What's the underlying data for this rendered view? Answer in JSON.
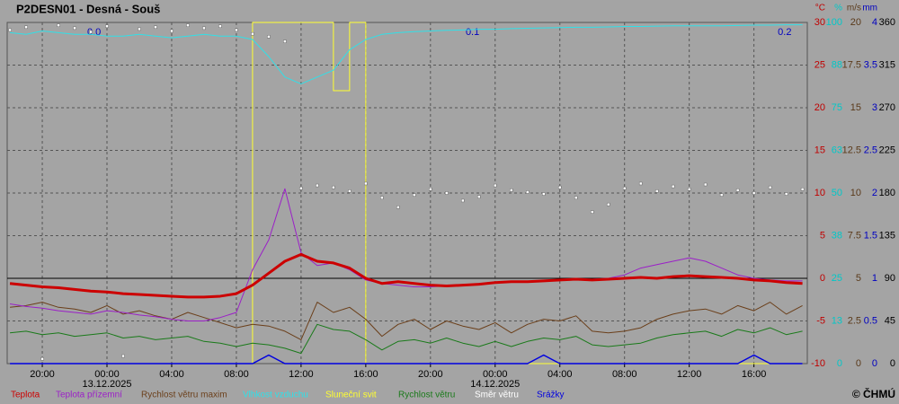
{
  "chart_data": {
    "type": "line",
    "title": "P2DESN01 - Desná - Souš",
    "copyright": "© ČHMÚ",
    "xlim": [
      -0.17,
      49.3
    ],
    "xticks": [
      {
        "value": 2,
        "label": "20:00"
      },
      {
        "value": 6,
        "label": "00:00"
      },
      {
        "value": 10,
        "label": "04:00"
      },
      {
        "value": 14,
        "label": "08:00"
      },
      {
        "value": 18,
        "label": "12:00"
      },
      {
        "value": 22,
        "label": "16:00"
      },
      {
        "value": 26,
        "label": "20:00"
      },
      {
        "value": 30,
        "label": "00:00"
      },
      {
        "value": 34,
        "label": "04:00"
      },
      {
        "value": 38,
        "label": "08:00"
      },
      {
        "value": 42,
        "label": "12:00"
      },
      {
        "value": 46,
        "label": "16:00"
      }
    ],
    "xdates": [
      {
        "value": 6,
        "label": "13.12.2025"
      },
      {
        "value": 30,
        "label": "14.12.2025"
      }
    ],
    "grid": true,
    "axes": [
      {
        "unit": "°C",
        "color": "#c00000",
        "lim": [
          -10,
          30
        ],
        "ticks": [
          -10,
          -5,
          0,
          5,
          10,
          15,
          20,
          25,
          30
        ]
      },
      {
        "unit": "%",
        "color": "#00c8c8",
        "lim": [
          0,
          100
        ],
        "ticks": [
          0,
          {
            "value": 12.5,
            "label": "13"
          },
          25,
          {
            "value": 37.5,
            "label": "38"
          },
          50,
          {
            "value": 62.5,
            "label": "63"
          },
          75,
          {
            "value": 87.5,
            "label": "88"
          },
          100
        ]
      },
      {
        "unit": "m/s",
        "color": "#5a3a1a",
        "lim": [
          0,
          20
        ],
        "ticks": [
          0,
          2.5,
          5,
          7.5,
          10,
          12.5,
          15,
          17.5,
          20
        ]
      },
      {
        "unit": "mm",
        "color": "#0000c0",
        "lim": [
          0,
          4
        ],
        "ticks": [
          0,
          0.5,
          1,
          1.5,
          2,
          2.5,
          3,
          3.5,
          4
        ]
      },
      {
        "color": "#ffffff",
        "lim": [
          0,
          360
        ],
        "ticks": [
          0,
          45,
          90,
          135,
          180,
          225,
          270,
          315,
          360
        ]
      }
    ],
    "zero_line": 0,
    "annotations": [
      {
        "x": 5.2,
        "text": "0.0"
      },
      {
        "x": 28.6,
        "text": "0.1"
      },
      {
        "x": 47.9,
        "text": "0.2"
      }
    ],
    "series": [
      {
        "name": "Teplota",
        "color": "#cc0000",
        "axis": 0,
        "style": "line",
        "width": 3,
        "values": [
          -0.6,
          -0.8,
          -1.0,
          -1.1,
          -1.3,
          -1.5,
          -1.6,
          -1.8,
          -1.9,
          -2.0,
          -2.1,
          -2.2,
          -2.2,
          -2.1,
          -1.8,
          -0.8,
          0.6,
          2.0,
          2.8,
          2.0,
          1.8,
          1.2,
          0.0,
          -0.6,
          -0.4,
          -0.6,
          -0.8,
          -0.9,
          -0.8,
          -0.7,
          -0.5,
          -0.4,
          -0.4,
          -0.3,
          -0.2,
          -0.1,
          -0.2,
          -0.1,
          0.0,
          0.1,
          0.0,
          0.2,
          0.3,
          0.2,
          0.1,
          0.0,
          -0.2,
          -0.3,
          -0.5,
          -0.6
        ]
      },
      {
        "name": "Teplota přízemní",
        "color": "#9b1fc8",
        "axis": 0,
        "style": "line",
        "width": 1,
        "values": [
          -3.0,
          -3.3,
          -3.5,
          -3.8,
          -4.0,
          -4.2,
          -3.8,
          -4.0,
          -4.3,
          -4.5,
          -4.8,
          -5.0,
          -5.0,
          -4.6,
          -4.0,
          1.0,
          4.5,
          10.5,
          3.0,
          1.5,
          1.8,
          1.0,
          -0.2,
          -0.6,
          -0.8,
          -1.0,
          -1.0,
          -0.9,
          -0.8,
          -0.6,
          -0.5,
          -0.4,
          -0.4,
          -0.3,
          -0.2,
          -0.2,
          -0.1,
          0.0,
          0.4,
          1.2,
          1.6,
          2.0,
          2.4,
          2.0,
          1.2,
          0.4,
          0.0,
          -0.2,
          -0.3,
          -0.3
        ]
      },
      {
        "name": "Rychlost větru maxim",
        "color": "#6b3f1a",
        "axis": 2,
        "style": "line",
        "width": 1,
        "values": [
          3.3,
          3.4,
          3.6,
          3.3,
          3.2,
          3.0,
          3.4,
          2.9,
          3.1,
          2.8,
          2.6,
          3.0,
          2.7,
          2.4,
          2.1,
          2.3,
          2.2,
          1.9,
          1.4,
          3.6,
          3.0,
          3.3,
          2.6,
          1.6,
          2.3,
          2.6,
          2.0,
          2.5,
          2.2,
          2.0,
          2.4,
          1.8,
          2.3,
          2.6,
          2.5,
          2.8,
          1.9,
          1.8,
          1.9,
          2.1,
          2.6,
          2.9,
          3.1,
          3.2,
          2.9,
          3.4,
          3.1,
          3.6,
          2.9,
          3.4
        ]
      },
      {
        "name": "Vlhkost vzduchu",
        "color": "#30e0e8",
        "axis": 1,
        "style": "line",
        "width": 1,
        "values": [
          97,
          96.5,
          97.5,
          97,
          96.5,
          96.5,
          96,
          96,
          96.5,
          96,
          95.5,
          96,
          96.5,
          96,
          96,
          95,
          90,
          84,
          82,
          84,
          86,
          92,
          95,
          96.5,
          97,
          97.3,
          97.5,
          97.7,
          97.8,
          98,
          98,
          98.2,
          98.3,
          98.4,
          98.5,
          98.6,
          98.6,
          98.7,
          98.8,
          98.8,
          98.9,
          99,
          99,
          99,
          99,
          99.1,
          99.2,
          99.2,
          99.3,
          99.3
        ]
      },
      {
        "name": "Sluneční svit",
        "color": "#ffff30",
        "axis": 1,
        "style": "step",
        "width": 1,
        "values": [
          0,
          0,
          0,
          0,
          0,
          0,
          0,
          0,
          0,
          0,
          0,
          0,
          0,
          0,
          0,
          100,
          100,
          100,
          100,
          100,
          80,
          100,
          0,
          0,
          0,
          0,
          0,
          0,
          0,
          0,
          0,
          0,
          0,
          0,
          0,
          0,
          0,
          0,
          0,
          0,
          0,
          0,
          0,
          0,
          0,
          0,
          0,
          0,
          0,
          0
        ]
      },
      {
        "name": "Rychlost větru",
        "color": "#1a7a1a",
        "axis": 2,
        "style": "line",
        "width": 1,
        "values": [
          1.8,
          1.9,
          1.7,
          1.8,
          1.6,
          1.7,
          1.8,
          1.5,
          1.6,
          1.4,
          1.5,
          1.6,
          1.3,
          1.2,
          1.0,
          1.2,
          1.1,
          0.9,
          0.6,
          2.3,
          2.0,
          1.9,
          1.4,
          0.8,
          1.3,
          1.4,
          1.2,
          1.5,
          1.2,
          1.0,
          1.3,
          1.0,
          1.3,
          1.5,
          1.4,
          1.6,
          1.1,
          1.0,
          1.1,
          1.2,
          1.5,
          1.7,
          1.8,
          1.9,
          1.6,
          2.0,
          1.8,
          2.1,
          1.7,
          1.9
        ]
      },
      {
        "name": "Směr větru",
        "color": "#ffffff",
        "axis": 4,
        "style": "dots",
        "width": 1,
        "values": [
          352,
          355,
          5,
          357,
          354,
          350,
          356,
          8,
          353,
          355,
          351,
          357,
          354,
          356,
          352,
          348,
          345,
          340,
          185,
          188,
          186,
          182,
          190,
          175,
          165,
          178,
          184,
          180,
          172,
          176,
          188,
          183,
          181,
          179,
          186,
          175,
          160,
          168,
          185,
          190,
          182,
          187,
          184,
          189,
          178,
          183,
          180,
          186,
          179,
          184
        ]
      },
      {
        "name": "Srážky",
        "color": "#0000e0",
        "axis": 3,
        "style": "line",
        "width": 1.5,
        "values": [
          0,
          0,
          0,
          0,
          0,
          0,
          0,
          0,
          0,
          0,
          0,
          0,
          0,
          0,
          0,
          0,
          0.1,
          0,
          0,
          0,
          0,
          0,
          0,
          0,
          0,
          0,
          0,
          0,
          0,
          0,
          0,
          0,
          0,
          0.1,
          0,
          0,
          0,
          0,
          0,
          0,
          0,
          0,
          0,
          0,
          0,
          0,
          0.1,
          0,
          0,
          0
        ]
      }
    ]
  }
}
